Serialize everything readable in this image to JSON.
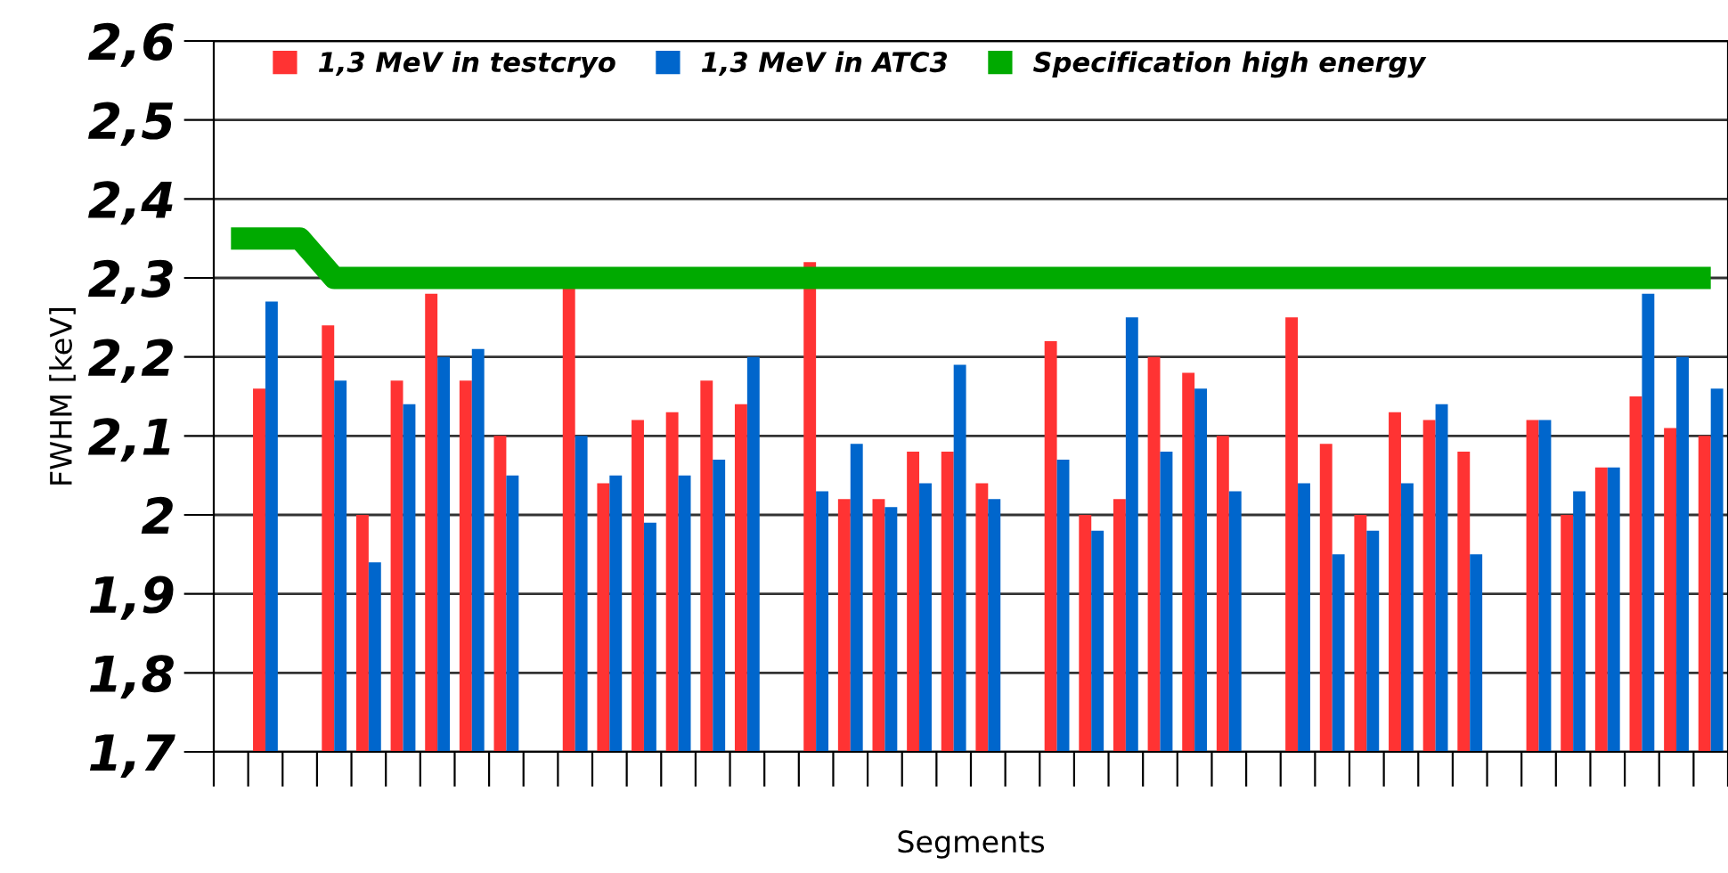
{
  "chart_data": {
    "type": "bar",
    "xlabel": "Segments",
    "ylabel": "FWHM [keV]",
    "categories": [
      null,
      null,
      null,
      null,
      null,
      null,
      null,
      null,
      null,
      null,
      null,
      null,
      null,
      null,
      null,
      null,
      null,
      null,
      null,
      null,
      null,
      null,
      null,
      null,
      null,
      null,
      null,
      null,
      null,
      null,
      null,
      null,
      null,
      null,
      null,
      null,
      null,
      null,
      null,
      null,
      null,
      null,
      null,
      null
    ],
    "series": [
      {
        "name": "1,3 MeV in testcryo",
        "color": "#ff3333",
        "values": [
          null,
          2.16,
          null,
          2.24,
          2.0,
          2.17,
          2.28,
          2.17,
          2.1,
          null,
          2.29,
          2.04,
          2.12,
          2.13,
          2.17,
          2.14,
          null,
          2.32,
          2.02,
          2.02,
          2.08,
          2.08,
          2.04,
          null,
          2.22,
          2.0,
          2.02,
          2.2,
          2.18,
          2.1,
          null,
          2.25,
          2.09,
          2.0,
          2.13,
          2.12,
          2.08,
          null,
          2.12,
          2.0,
          2.06,
          2.15,
          2.11,
          2.1
        ]
      },
      {
        "name": "1,3 MeV in ATC3",
        "color": "#0066cc",
        "values": [
          null,
          2.27,
          null,
          2.17,
          1.94,
          2.14,
          2.2,
          2.21,
          2.05,
          null,
          2.1,
          2.05,
          1.99,
          2.05,
          2.07,
          2.2,
          null,
          2.03,
          2.09,
          2.01,
          2.04,
          2.19,
          2.02,
          null,
          2.07,
          1.98,
          2.25,
          2.08,
          2.16,
          2.03,
          null,
          2.04,
          1.95,
          1.98,
          2.04,
          2.14,
          1.95,
          null,
          2.12,
          2.03,
          2.06,
          2.28,
          2.2,
          2.16
        ]
      },
      {
        "name": "Specification high energy",
        "color": "#00aa00",
        "type": "line",
        "values": [
          2.35,
          2.35,
          2.35,
          2.3,
          2.3,
          2.3,
          2.3,
          2.3,
          2.3,
          2.3,
          2.3,
          2.3,
          2.3,
          2.3,
          2.3,
          2.3,
          2.3,
          2.3,
          2.3,
          2.3,
          2.3,
          2.3,
          2.3,
          2.3,
          2.3,
          2.3,
          2.3,
          2.3,
          2.3,
          2.3,
          2.3,
          2.3,
          2.3,
          2.3,
          2.3,
          2.3,
          2.3,
          2.3,
          2.3,
          2.3,
          2.3,
          2.3,
          2.3,
          2.3
        ]
      }
    ],
    "ylim": [
      1.7,
      2.6
    ],
    "yticks": [
      {
        "value": 1.7,
        "label": "1,7"
      },
      {
        "value": 1.8,
        "label": "1,8"
      },
      {
        "value": 1.9,
        "label": "1,9"
      },
      2,
      {
        "value": 2.1,
        "label": "2,1"
      },
      {
        "value": 2.2,
        "label": "2,2"
      },
      {
        "value": 2.3,
        "label": "2,3"
      },
      {
        "value": 2.4,
        "label": "2,4"
      },
      {
        "value": 2.5,
        "label": "2,5"
      },
      {
        "value": 2.6,
        "label": "2,6"
      }
    ],
    "grid": "y",
    "legend": "top"
  }
}
